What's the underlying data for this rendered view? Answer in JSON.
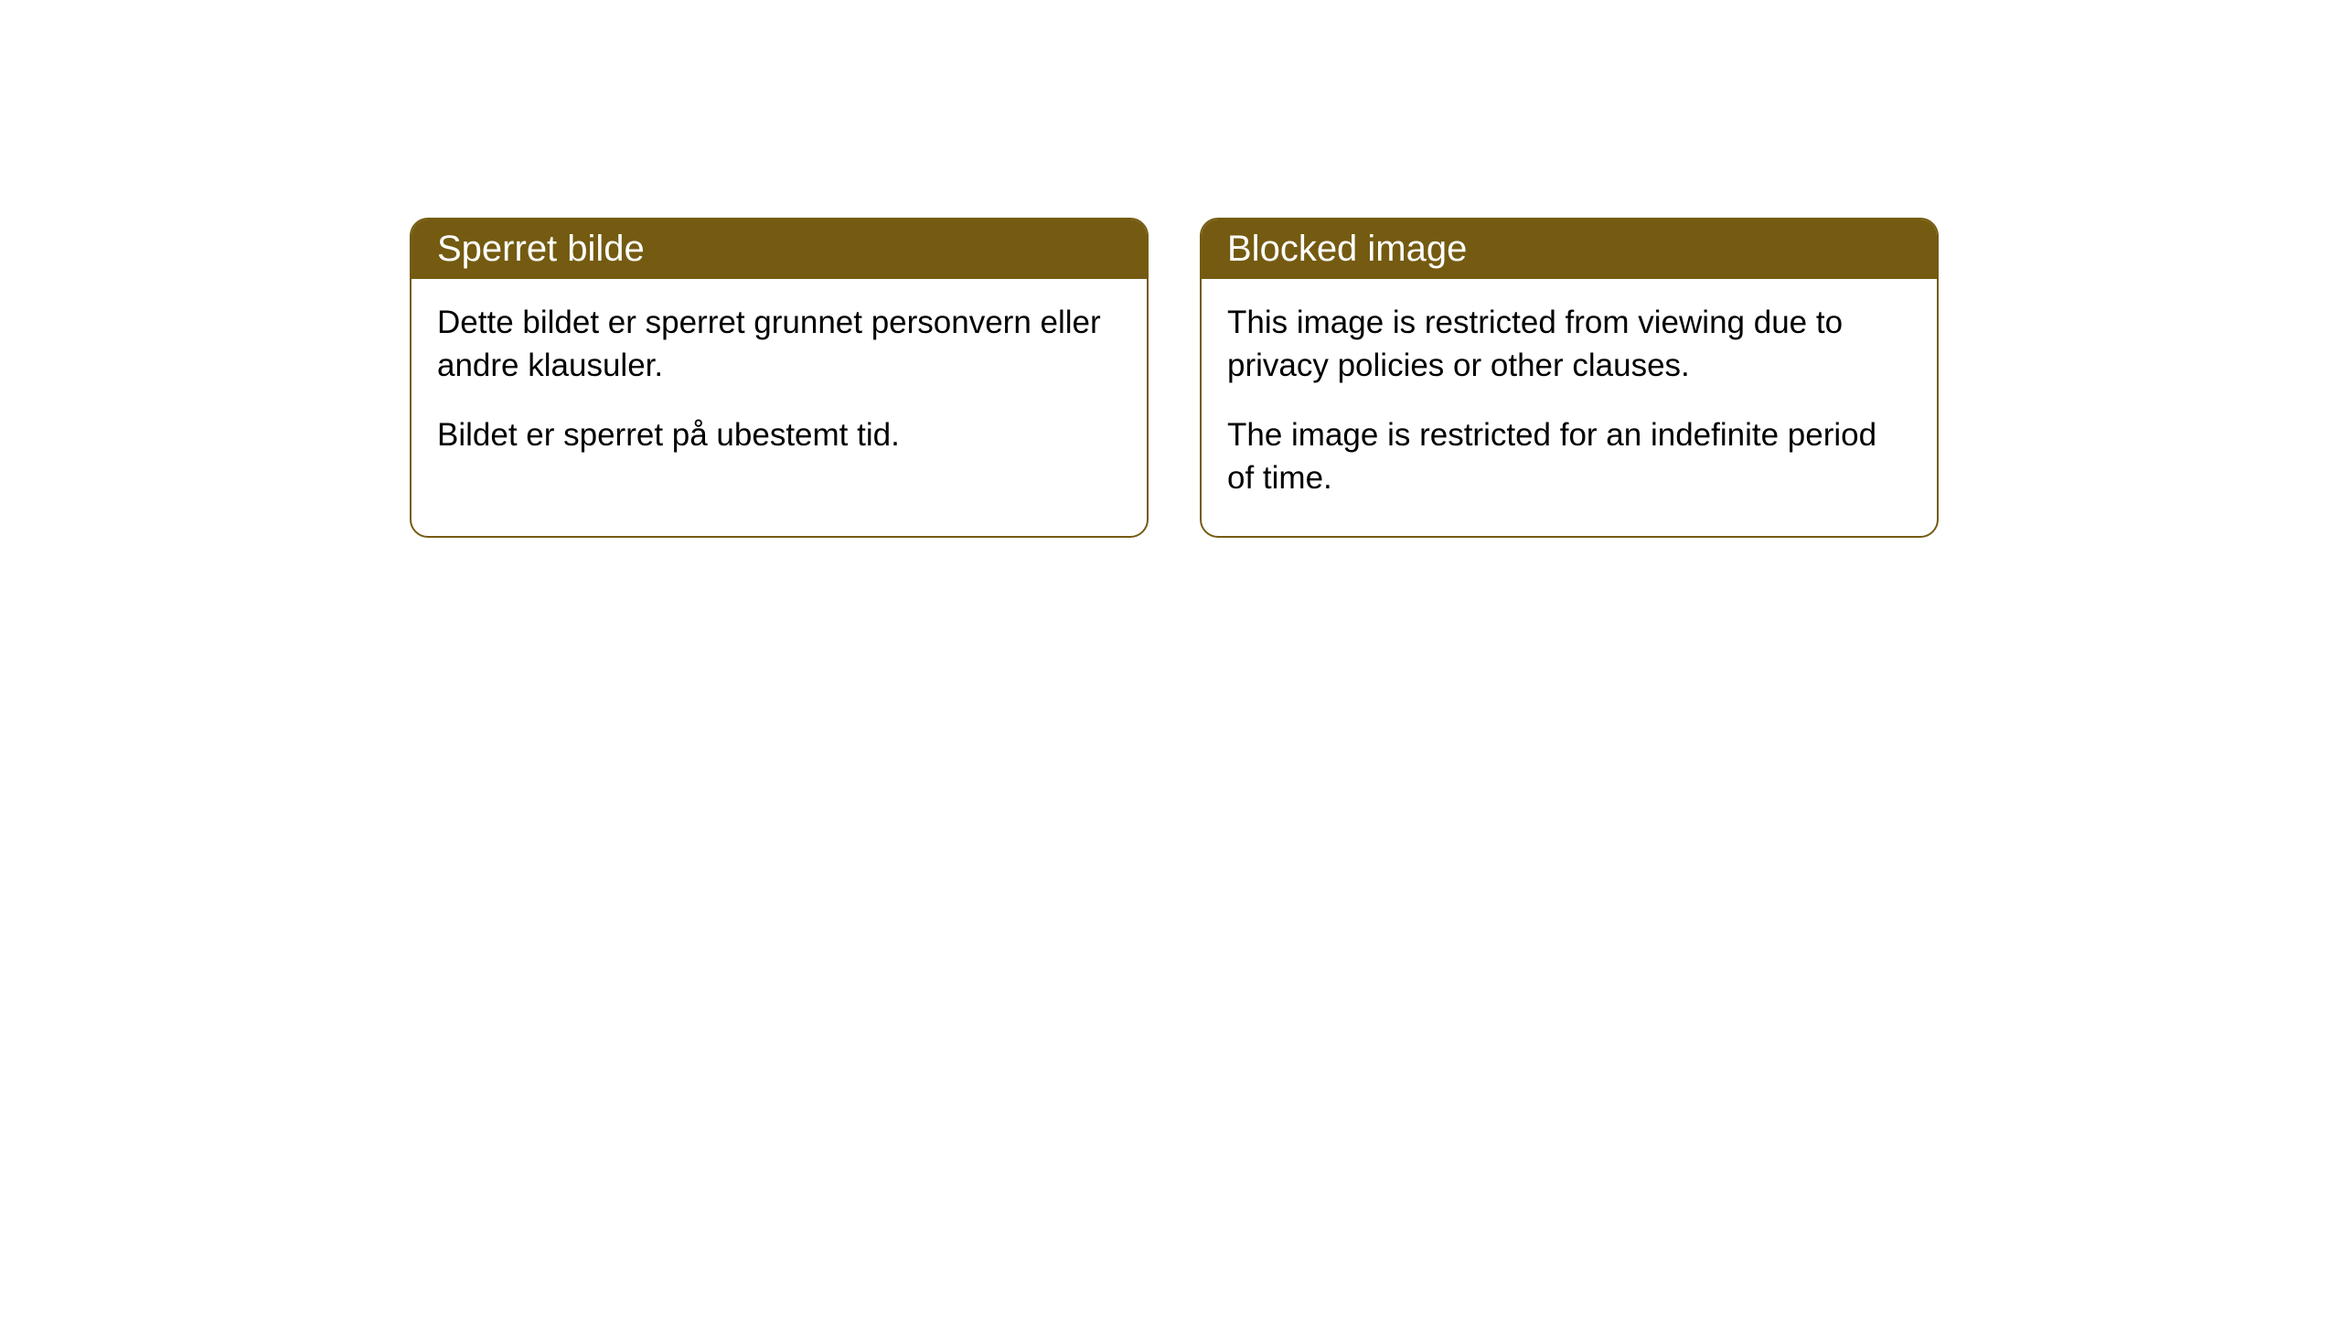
{
  "cards": [
    {
      "title": "Sperret bilde",
      "paragraph1": "Dette bildet er sperret grunnet personvern eller andre klausuler.",
      "paragraph2": "Bildet er sperret på ubestemt tid."
    },
    {
      "title": "Blocked image",
      "paragraph1": "This image is restricted from viewing due to privacy policies or other clauses.",
      "paragraph2": "The image is restricted for an indefinite period of time."
    }
  ],
  "style": {
    "header_bg": "#745b11",
    "header_text": "#ffffff",
    "border_color": "#745b11",
    "body_bg": "#ffffff",
    "body_text": "#000000",
    "border_radius": 20,
    "title_fontsize": 40,
    "body_fontsize": 35
  }
}
